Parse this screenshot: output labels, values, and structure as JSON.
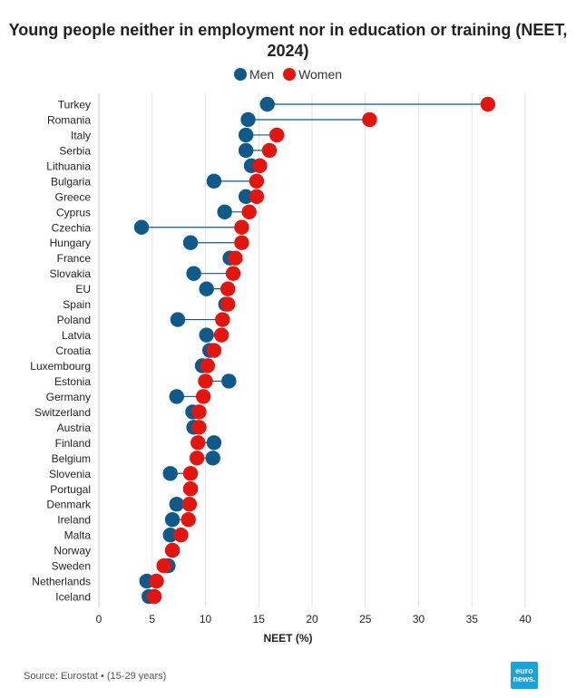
{
  "chart_data": {
    "type": "dumbbell",
    "title": "Young people neither in employment nor in education or training (NEET, 2024)",
    "xlabel": "NEET (%)",
    "xlim": [
      0,
      40
    ],
    "xticks": [
      0,
      5,
      10,
      15,
      20,
      25,
      30,
      35,
      40
    ],
    "legend": [
      {
        "name": "Men",
        "color": "#0f5a8a"
      },
      {
        "name": "Women",
        "color": "#e3150f"
      }
    ],
    "categories": [
      "Turkey",
      "Romania",
      "Italy",
      "Serbia",
      "Lithuania",
      "Bulgaria",
      "Greece",
      "Cyprus",
      "Czechia",
      "Hungary",
      "France",
      "Slovakia",
      "EU",
      "Spain",
      "Poland",
      "Latvia",
      "Croatia",
      "Luxembourg",
      "Estonia",
      "Germany",
      "Switzerland",
      "Austria",
      "Finland",
      "Belgium",
      "Slovenia",
      "Portugal",
      "Denmark",
      "Ireland",
      "Malta",
      "Norway",
      "Sweden",
      "Netherlands",
      "Iceland"
    ],
    "series": [
      {
        "name": "Men",
        "values": [
          15.8,
          14.0,
          13.8,
          13.8,
          14.3,
          10.8,
          13.8,
          11.8,
          4.0,
          8.6,
          12.3,
          8.9,
          10.1,
          11.9,
          7.4,
          10.1,
          10.4,
          9.7,
          12.2,
          7.3,
          8.8,
          8.9,
          10.8,
          10.7,
          6.7,
          8.6,
          7.3,
          6.9,
          6.7,
          6.9,
          6.5,
          4.5,
          4.7
        ],
        "color": "#0f5a8a"
      },
      {
        "name": "Women",
        "values": [
          36.5,
          25.4,
          16.7,
          16.0,
          15.1,
          14.8,
          14.8,
          14.1,
          13.4,
          13.4,
          12.8,
          12.6,
          12.1,
          12.1,
          11.6,
          11.5,
          10.8,
          10.2,
          10.0,
          9.8,
          9.4,
          9.4,
          9.3,
          9.2,
          8.6,
          8.6,
          8.5,
          8.4,
          7.7,
          6.9,
          6.1,
          5.4,
          5.2
        ],
        "color": "#e3150f"
      }
    ]
  },
  "source": "Source: Eurostat • (15-29 years)",
  "brand": {
    "line1": "euro",
    "line2": "news."
  }
}
